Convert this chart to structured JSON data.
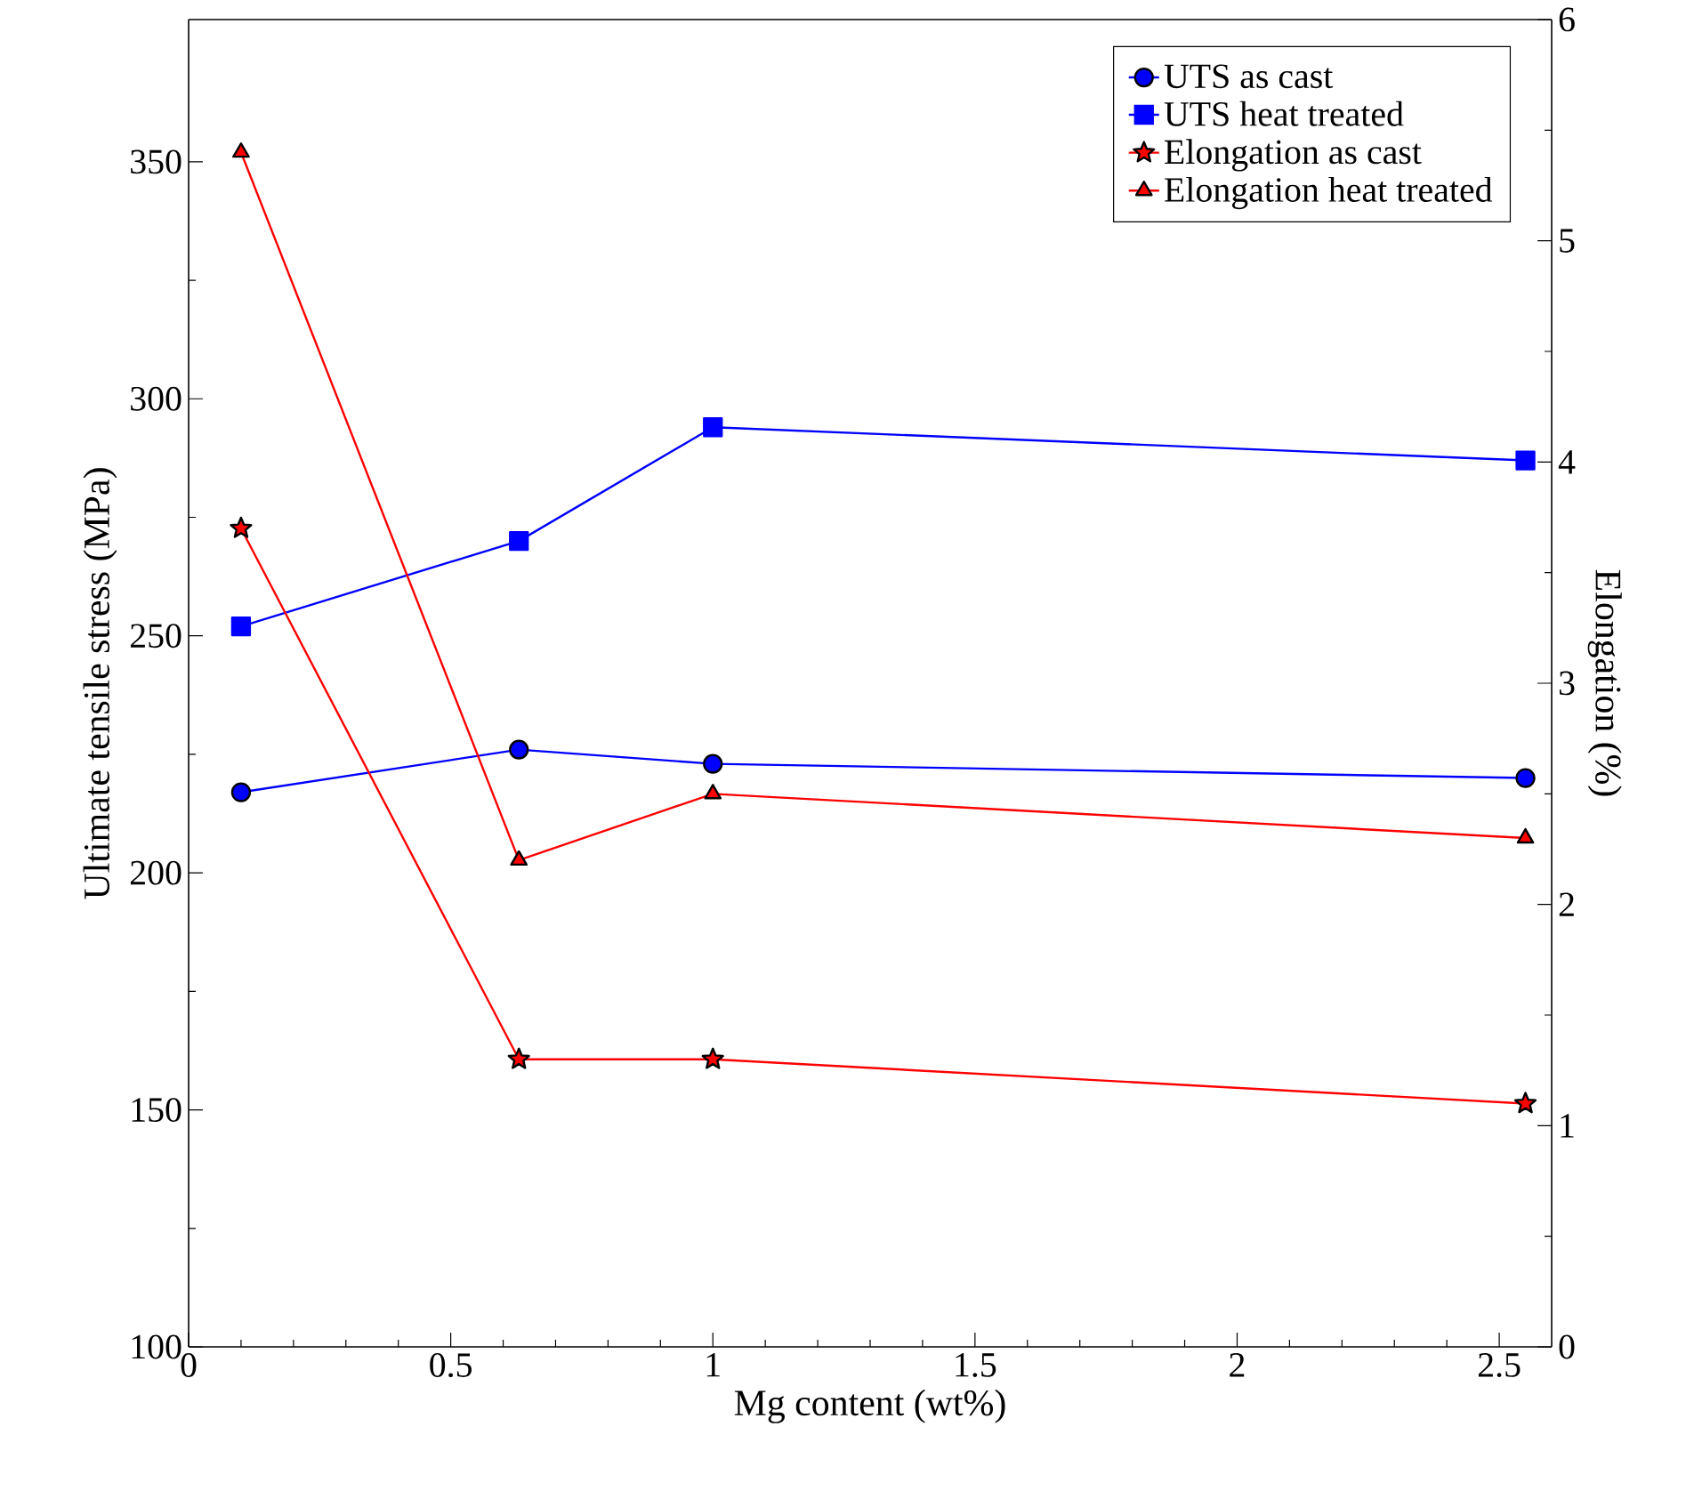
{
  "chart_data": {
    "type": "line",
    "xlabel": "Mg content (wt%)",
    "ylabel": "Ultimate tensile stress (MPa)",
    "y2label": "Elongation (%)",
    "x": [
      0.1,
      0.63,
      1.0,
      2.55
    ],
    "xlim": [
      0,
      2.6
    ],
    "xticks": [
      0,
      0.5,
      1,
      1.5,
      2,
      2.5
    ],
    "ylim": [
      100,
      380
    ],
    "yticks": [
      100,
      150,
      200,
      250,
      300,
      350
    ],
    "y2lim": [
      0,
      6
    ],
    "y2ticks": [
      0,
      1,
      2,
      3,
      4,
      5,
      6
    ],
    "legend": "top right",
    "series": [
      {
        "name": "UTS as cast",
        "color": "#0000ff",
        "marker": "circle",
        "values": [
          217,
          226,
          223,
          220
        ]
      },
      {
        "name": "UTS heat treated",
        "color": "#0000ff",
        "marker": "square",
        "values": [
          252,
          270,
          294,
          287
        ]
      },
      {
        "name": "Elongation as cast",
        "color": "#ff0000",
        "marker": "star",
        "axis": "y2",
        "values": [
          3.7,
          1.3,
          1.3,
          1.1
        ]
      },
      {
        "name": "Elongation heat treated",
        "color": "#ff0000",
        "marker": "triangle",
        "axis": "y2",
        "values": [
          5.4,
          2.2,
          2.5,
          2.3
        ]
      }
    ]
  }
}
